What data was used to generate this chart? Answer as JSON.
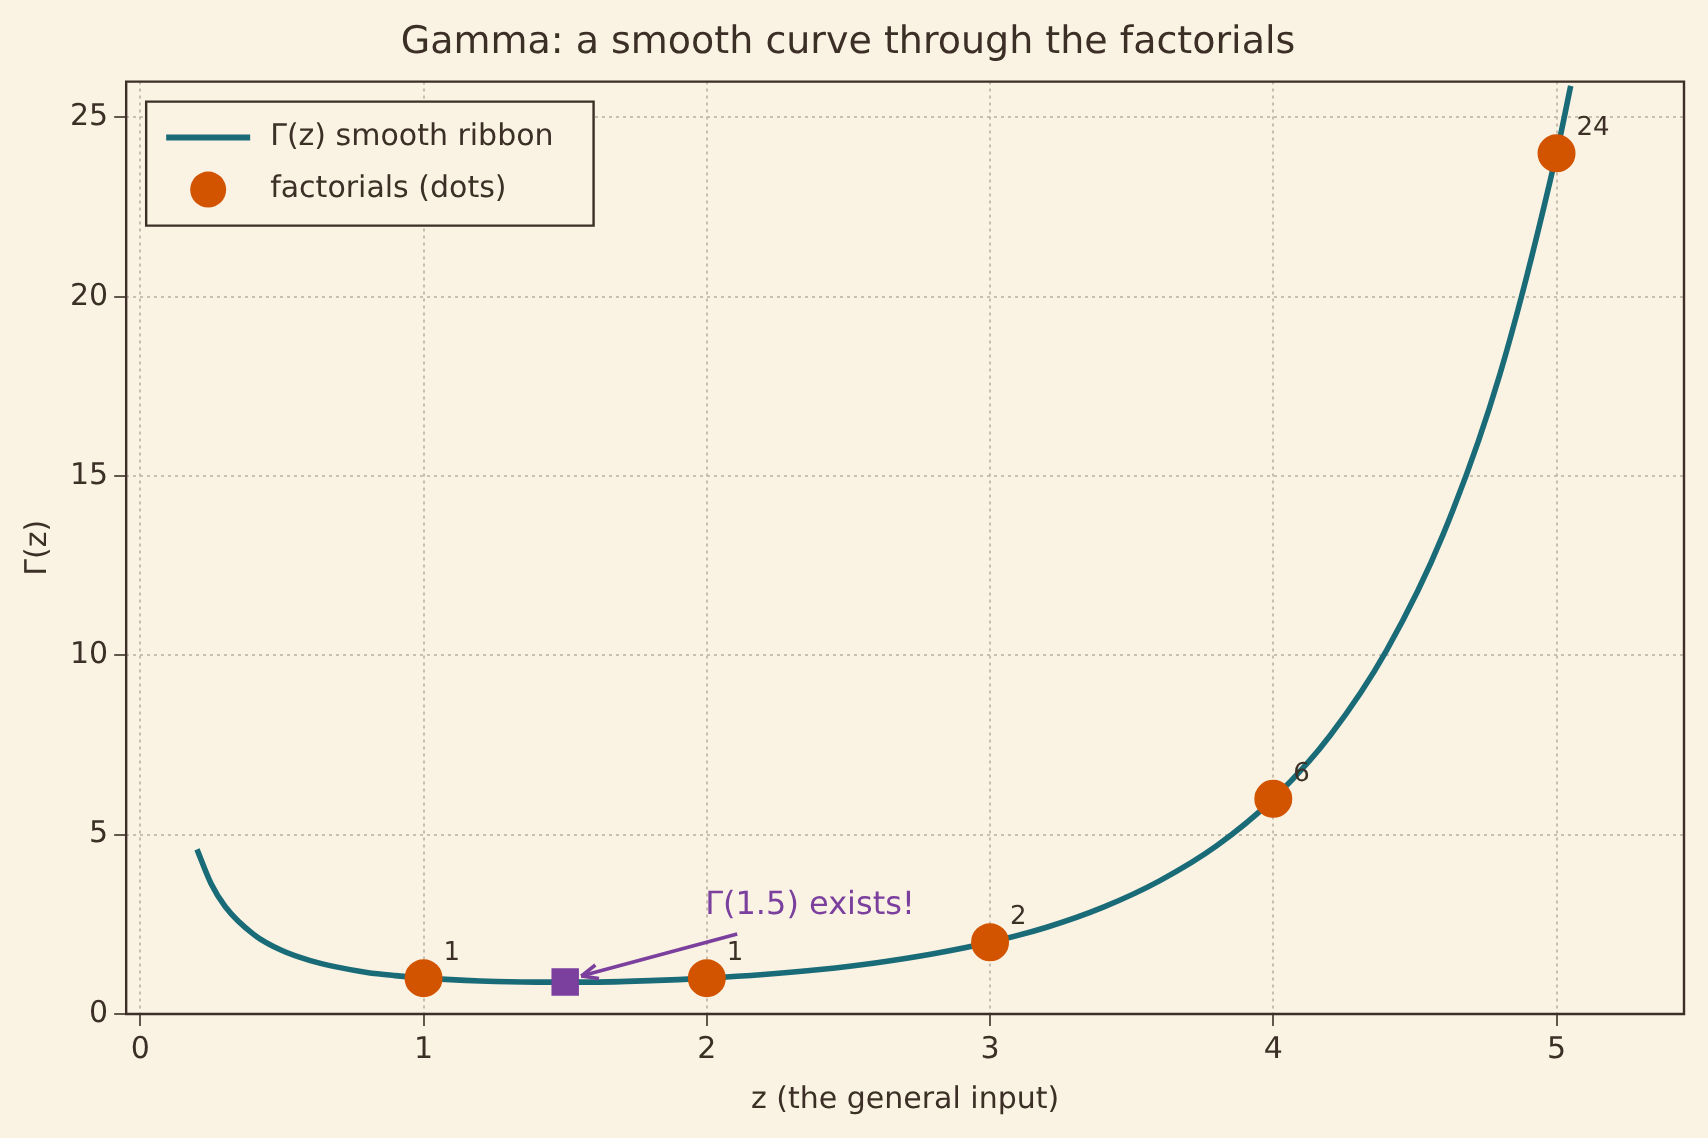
{
  "chart_data": {
    "type": "line",
    "title": "Gamma: a smooth curve through the factorials",
    "xlabel": "z (the general input)",
    "ylabel": "Γ(z)",
    "xlim": [
      -0.05,
      5.45
    ],
    "xticks": [
      0,
      1,
      2,
      3,
      4,
      5
    ],
    "ylim": [
      0,
      26
    ],
    "yticks": [
      0,
      5,
      10,
      15,
      20,
      25
    ],
    "grid": true,
    "legend": "top left",
    "series": [
      {
        "name": "Γ(z) smooth ribbon",
        "color": "#1a6b78",
        "marker": "none",
        "line_style": "solid",
        "x": [
          0.2,
          0.25,
          0.3,
          0.4,
          0.5,
          0.6,
          0.7,
          0.8,
          0.9,
          1,
          1.2,
          1.4,
          1.46,
          1.6,
          1.8,
          2,
          2.2,
          2.4,
          2.6,
          2.8,
          3,
          3.2,
          3.4,
          3.6,
          3.8,
          4,
          4.2,
          4.4,
          4.6,
          4.8,
          5,
          5.05
        ],
        "values": [
          4.59,
          3.63,
          2.99,
          2.22,
          1.77,
          1.49,
          1.3,
          1.16,
          1.07,
          1,
          0.92,
          0.89,
          0.89,
          0.89,
          0.93,
          1,
          1.1,
          1.24,
          1.43,
          1.68,
          2,
          2.42,
          2.98,
          3.72,
          4.69,
          6,
          7.76,
          10.14,
          13.38,
          17.84,
          24,
          25.88
        ]
      },
      {
        "name": "factorials (dots)",
        "type": "scatter",
        "color": "#d35400",
        "marker": "circle",
        "x": [
          1,
          2,
          3,
          4,
          5
        ],
        "values": [
          1,
          1,
          2,
          6,
          24
        ],
        "value_labels": [
          "1",
          "1",
          "2",
          "6",
          "24"
        ]
      },
      {
        "type": "scatter",
        "color": "#7b3f9e",
        "marker": "square",
        "x": [
          1.5
        ],
        "values": [
          0.89
        ]
      }
    ],
    "annotations": [
      {
        "text": "Γ(1.5) exists!",
        "x": 1.5,
        "y": 0.89
      }
    ]
  }
}
